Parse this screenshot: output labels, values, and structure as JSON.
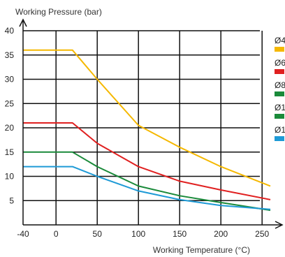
{
  "chart_data": {
    "type": "line",
    "title": "",
    "ylabel": "Working Pressure (bar)",
    "xlabel": "Working Temperature (°C)",
    "xlim": [
      -40,
      260
    ],
    "ylim": [
      0,
      40
    ],
    "x_ticks": [
      -40,
      0,
      50,
      100,
      150,
      200,
      250
    ],
    "y_ticks": [
      5,
      10,
      15,
      20,
      25,
      30,
      35,
      40
    ],
    "grid": true,
    "legend_position": "right",
    "series": [
      {
        "name": "Ø4",
        "color": "#F5B800",
        "x": [
          -40,
          20,
          50,
          100,
          150,
          200,
          260
        ],
        "y": [
          36,
          36,
          30,
          20.5,
          16,
          12,
          8
        ]
      },
      {
        "name": "Ø6",
        "color": "#E02020",
        "x": [
          -40,
          20,
          50,
          100,
          150,
          200,
          260
        ],
        "y": [
          21,
          21,
          16.8,
          12,
          9,
          7.2,
          5.2
        ]
      },
      {
        "name": "Ø8",
        "color": "#1A8A3A",
        "x": [
          -40,
          20,
          50,
          100,
          150,
          200,
          260
        ],
        "y": [
          15,
          15,
          12,
          8,
          6,
          4.6,
          3
        ]
      },
      {
        "name": "Ø1",
        "color": "#1A8A3A",
        "x": [],
        "y": []
      },
      {
        "name": "Ø1",
        "color": "#1E9AD6",
        "x": [
          -40,
          20,
          50,
          100,
          150,
          200,
          260
        ],
        "y": [
          12,
          12,
          10,
          7,
          5.2,
          4,
          3.2
        ]
      }
    ]
  }
}
